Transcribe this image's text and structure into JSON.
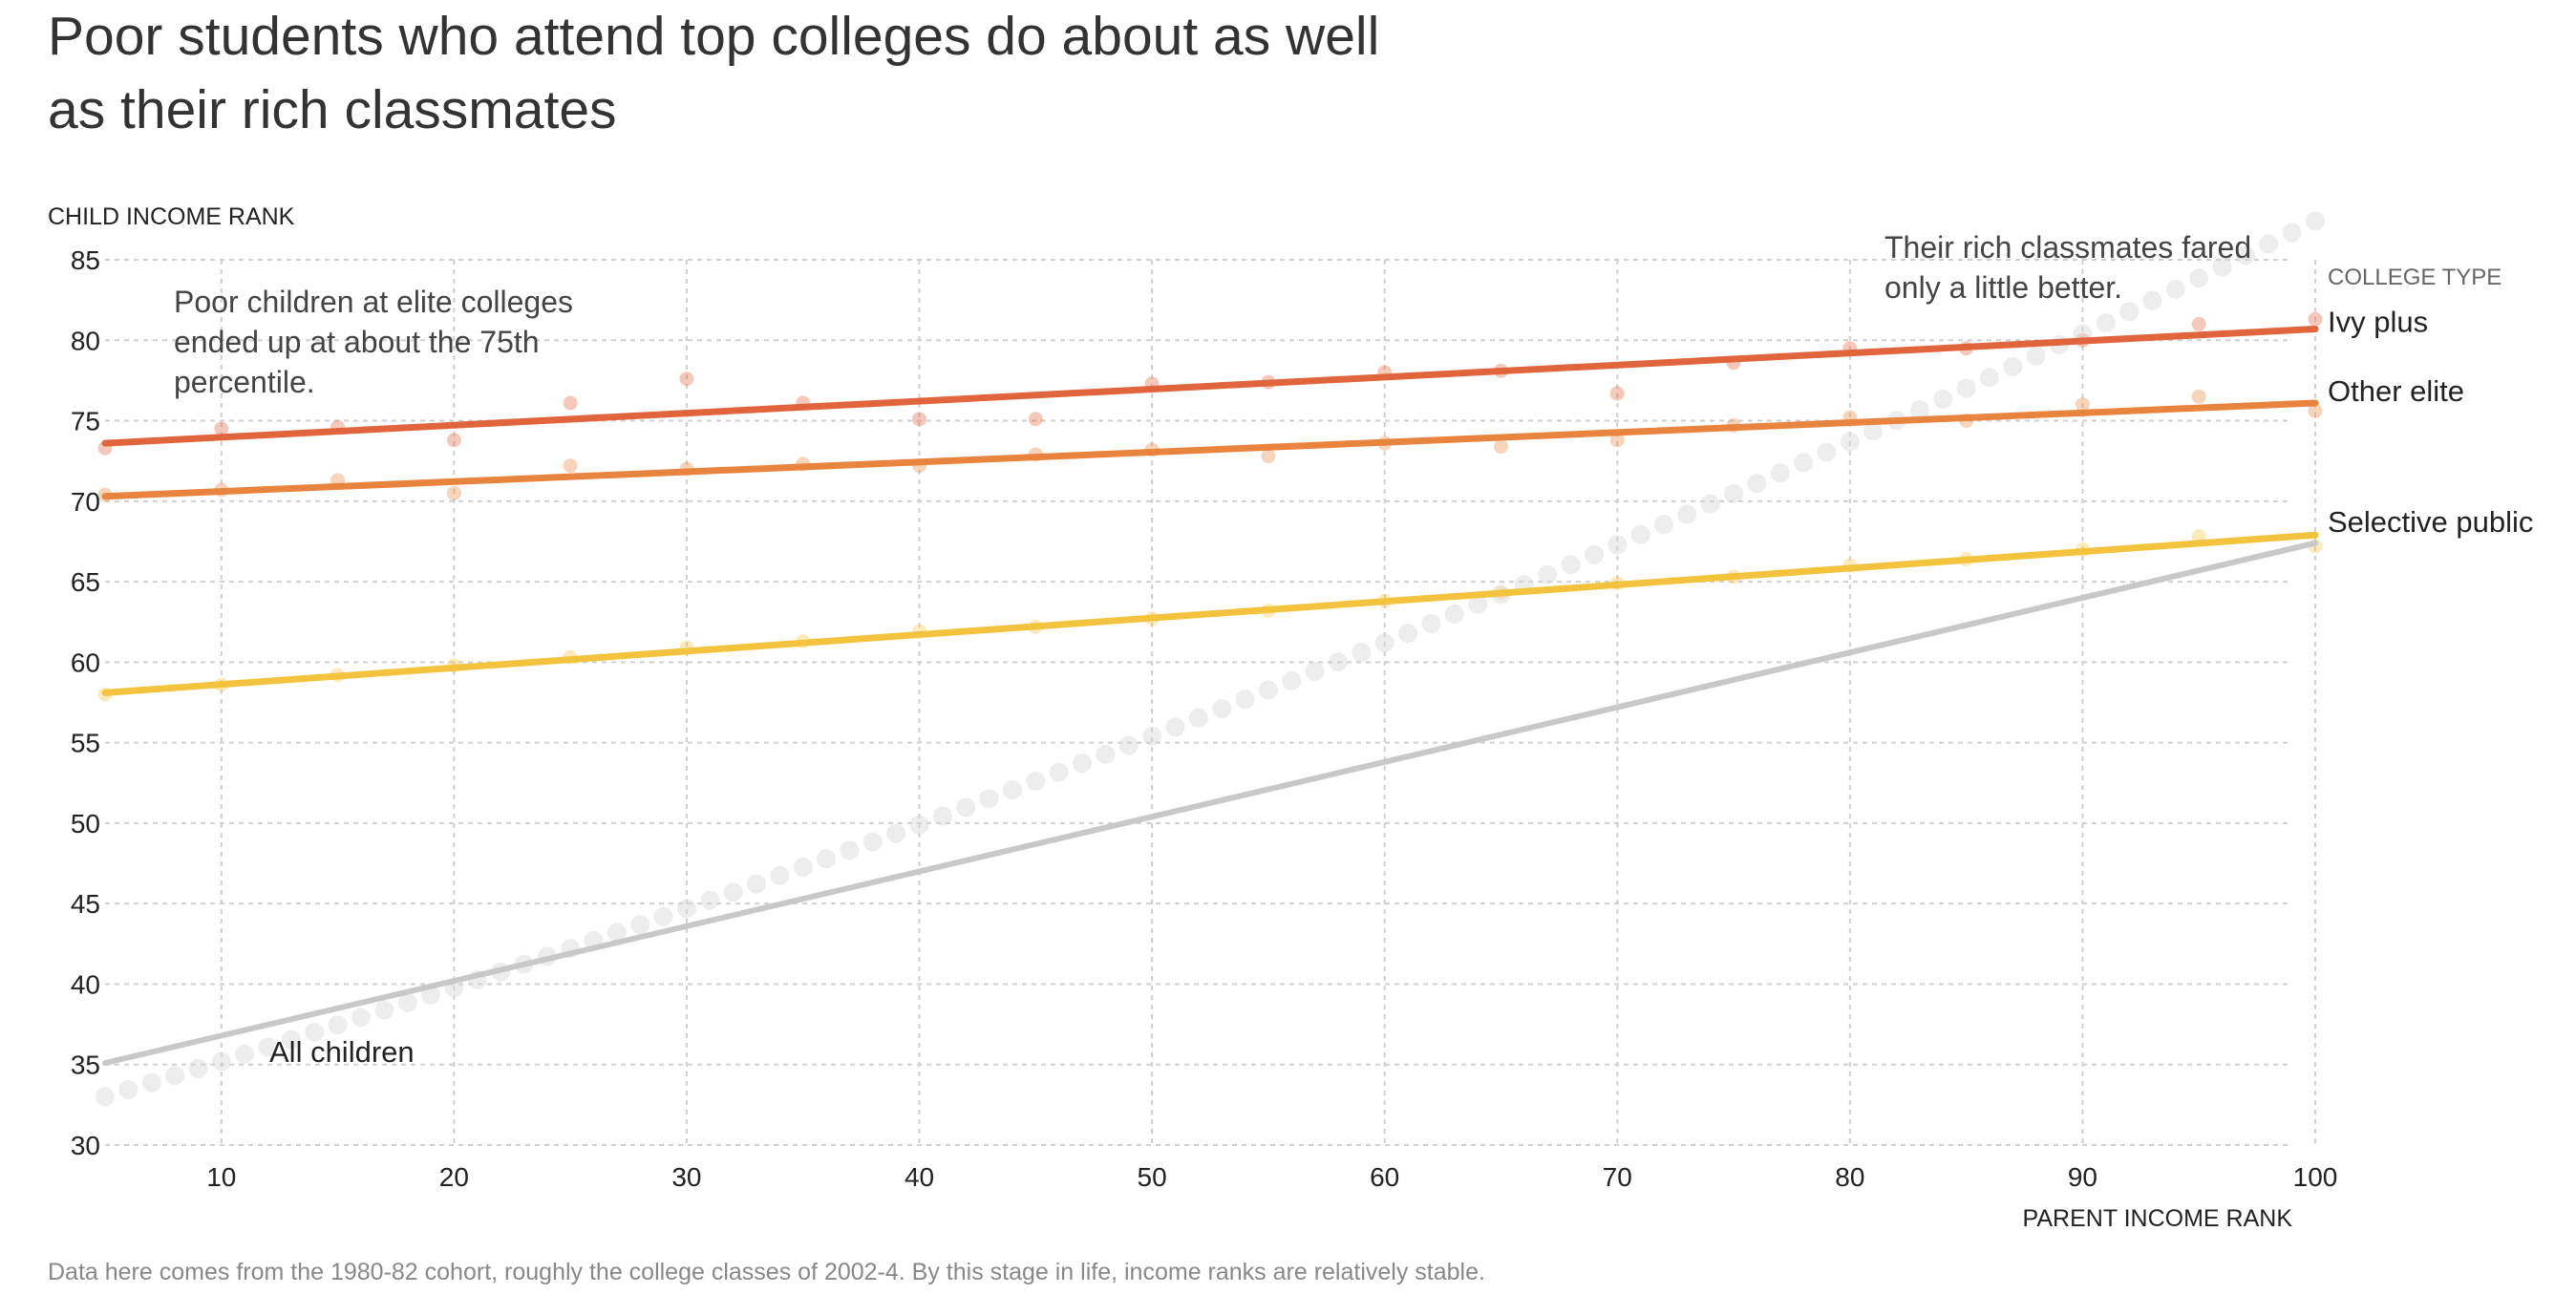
{
  "title": "Poor students who attend top colleges do about as well as their rich classmates",
  "footnote": "Data here comes from the 1980-82 cohort, roughly the college classes of 2002-4. By this stage in life, income ranks are relatively stable.",
  "annotations": {
    "poor": [
      "Poor children at elite colleges",
      "ended up at about the 75th",
      "percentile."
    ],
    "rich": [
      "Their rich classmates fared",
      "only a little better."
    ]
  },
  "legend_title": "COLLEGE TYPE",
  "colors": {
    "ivy_plus": "#e0643c",
    "other_elite": "#e8843e",
    "selective_public": "#f4c33e",
    "all_children": "#c8c8c8",
    "grid": "#cfcfcf"
  },
  "chart_data": {
    "type": "scatter",
    "title": "Poor students who attend top colleges do about as well as their rich classmates",
    "xlabel": "PARENT INCOME RANK",
    "ylabel": "CHILD INCOME RANK",
    "xlim": [
      5,
      100
    ],
    "ylim": [
      30,
      85
    ],
    "x_ticks": [
      10,
      20,
      30,
      40,
      50,
      60,
      70,
      80,
      90,
      100
    ],
    "y_ticks": [
      30,
      35,
      40,
      45,
      50,
      55,
      60,
      65,
      70,
      75,
      80,
      85
    ],
    "grid": true,
    "legend_title": "COLLEGE TYPE",
    "series": [
      {
        "name": "Ivy plus",
        "key": "ivy_plus",
        "fit": {
          "x": [
            5,
            100
          ],
          "y": [
            73.6,
            80.7
          ]
        },
        "points": [
          [
            5,
            73.3
          ],
          [
            10,
            74.5
          ],
          [
            15,
            74.6
          ],
          [
            20,
            73.8
          ],
          [
            25,
            76.1
          ],
          [
            30,
            77.6
          ],
          [
            35,
            76.1
          ],
          [
            40,
            75.1
          ],
          [
            45,
            75.1
          ],
          [
            50,
            77.3
          ],
          [
            55,
            77.4
          ],
          [
            60,
            78
          ],
          [
            65,
            78.1
          ],
          [
            70,
            76.7
          ],
          [
            75,
            78.6
          ],
          [
            80,
            79.5
          ],
          [
            85,
            79.5
          ],
          [
            90,
            80
          ],
          [
            95,
            81
          ],
          [
            100,
            81.3
          ]
        ]
      },
      {
        "name": "Other elite",
        "key": "other_elite",
        "fit": {
          "x": [
            5,
            100
          ],
          "y": [
            70.3,
            76.1
          ]
        },
        "points": [
          [
            5,
            70.4
          ],
          [
            10,
            70.7
          ],
          [
            15,
            71.3
          ],
          [
            20,
            70.5
          ],
          [
            25,
            72.2
          ],
          [
            30,
            72
          ],
          [
            35,
            72.3
          ],
          [
            40,
            72.2
          ],
          [
            45,
            72.9
          ],
          [
            50,
            73.2
          ],
          [
            55,
            72.8
          ],
          [
            60,
            73.6
          ],
          [
            65,
            73.4
          ],
          [
            70,
            73.8
          ],
          [
            75,
            74.7
          ],
          [
            80,
            75.2
          ],
          [
            85,
            75
          ],
          [
            90,
            76
          ],
          [
            95,
            76.5
          ],
          [
            100,
            75.6
          ]
        ]
      },
      {
        "name": "Selective public",
        "key": "selective_public",
        "fit": {
          "x": [
            5,
            100
          ],
          "y": [
            58.1,
            67.9
          ]
        },
        "points": [
          [
            5,
            58
          ],
          [
            10,
            58.6
          ],
          [
            15,
            59.2
          ],
          [
            20,
            59.8
          ],
          [
            25,
            60.3
          ],
          [
            30,
            60.9
          ],
          [
            35,
            61.3
          ],
          [
            40,
            61.9
          ],
          [
            45,
            62.2
          ],
          [
            50,
            62.7
          ],
          [
            55,
            63.2
          ],
          [
            60,
            63.8
          ],
          [
            65,
            64.3
          ],
          [
            70,
            64.9
          ],
          [
            75,
            65.3
          ],
          [
            80,
            66
          ],
          [
            85,
            66.4
          ],
          [
            90,
            67
          ],
          [
            95,
            67.8
          ],
          [
            100,
            67.2
          ]
        ]
      },
      {
        "name": "All children",
        "key": "all_children",
        "fit": {
          "x": [
            5,
            100
          ],
          "y": [
            35.1,
            67.4
          ]
        },
        "points_formula": "y = 30.9 + 0.415*x + 0.0015*x^2 for x = 5..100"
      }
    ]
  }
}
